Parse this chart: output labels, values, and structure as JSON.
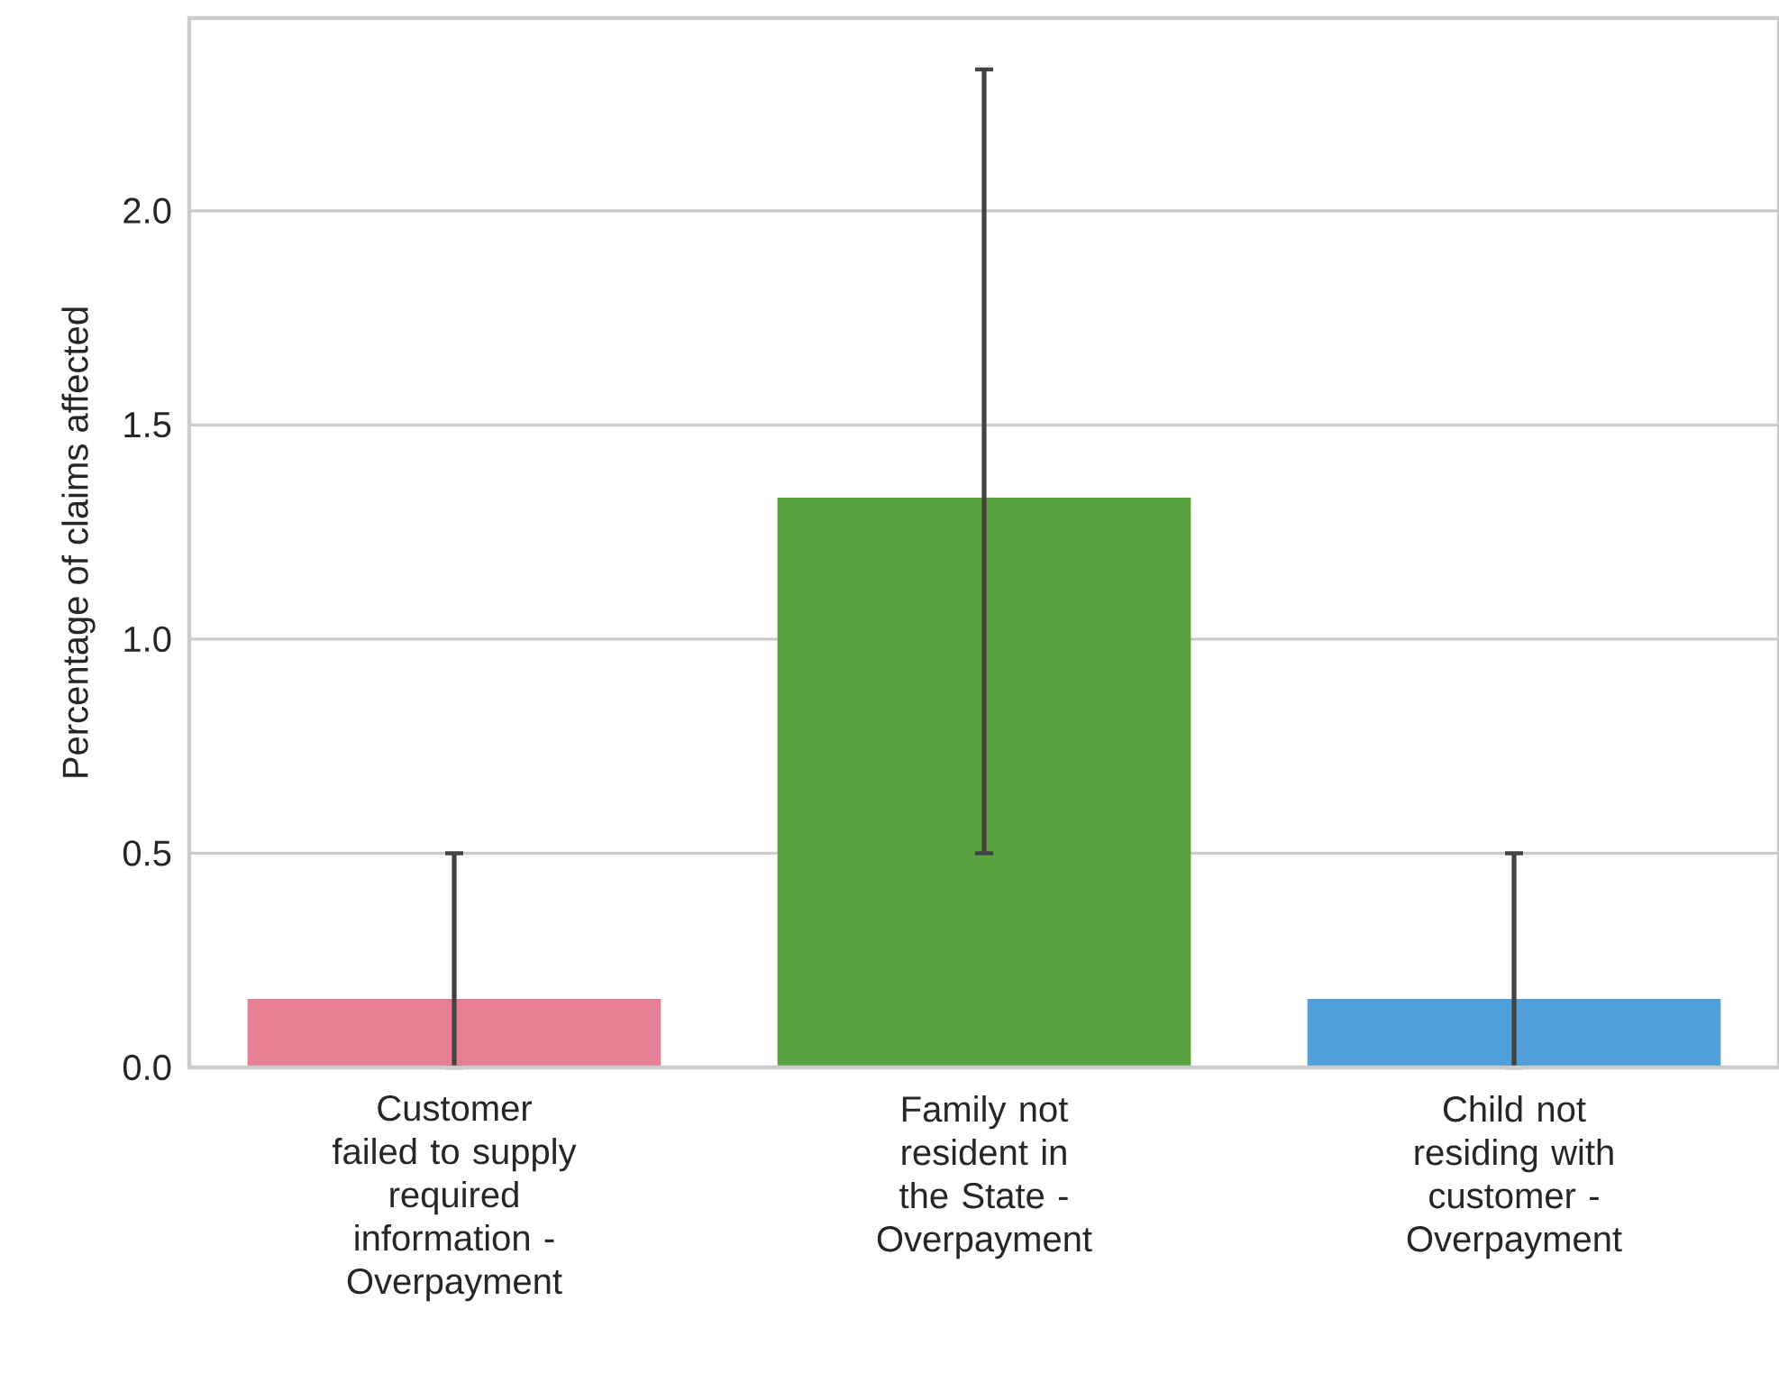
{
  "chart_data": {
    "type": "bar",
    "ylabel": "Percentage of claims affected",
    "categories": [
      "Customer failed to supply required information - Overpayment",
      "Family not resident in the State - Overpayment",
      "Child not residing with customer - Overpayment"
    ],
    "values": [
      0.16,
      1.33,
      0.16
    ],
    "colors": [
      "#e57f93",
      "#58a13f",
      "#509fd8"
    ],
    "errors": [
      [
        0,
        0.5
      ],
      [
        0.5,
        2.33
      ],
      [
        0,
        0.5
      ]
    ],
    "ylim": [
      0,
      2.45
    ],
    "yticks": [
      {
        "value": 0,
        "label": "0.0"
      },
      {
        "value": 0.5,
        "label": "0.5"
      },
      {
        "value": 1,
        "label": "1.0"
      },
      {
        "value": 1.5,
        "label": "1.5"
      },
      {
        "value": 2,
        "label": "2.0"
      }
    ],
    "grid": "y"
  }
}
